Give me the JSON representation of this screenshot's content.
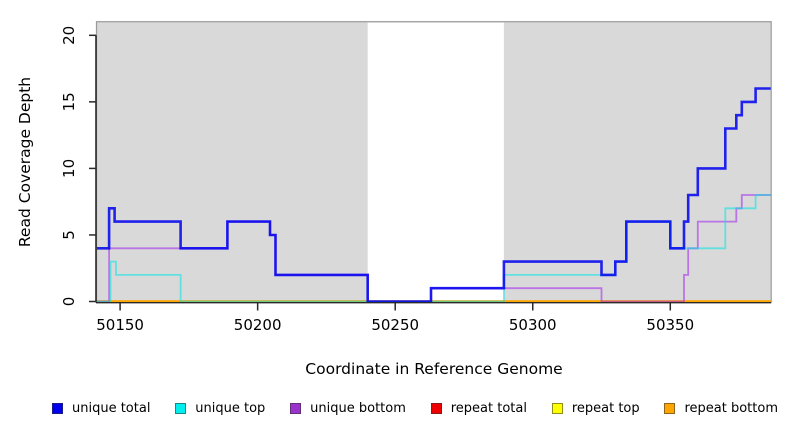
{
  "chart_data": {
    "type": "line",
    "subtype": "step",
    "title": "",
    "xlabel": "Coordinate in Reference Genome",
    "ylabel": "Read Coverage Depth",
    "xlim": [
      50141.6,
      50386.5
    ],
    "ylim": [
      0,
      21
    ],
    "x_ticks": [
      50150,
      50200,
      50250,
      50300,
      50350
    ],
    "y_ticks": [
      0,
      5,
      10,
      15,
      20
    ],
    "grid": false,
    "plot_bg_color": "#d9d9d9",
    "gap_band": {
      "x0": 50240,
      "x1": 50289.5,
      "color": "#ffffff"
    },
    "legend_position": "bottom",
    "series": [
      {
        "name": "repeat total",
        "color": "#ee0000",
        "alpha": 1,
        "width": 2.2,
        "points": [
          [
            50141.6,
            0
          ],
          [
            50386.5,
            0
          ]
        ]
      },
      {
        "name": "repeat top",
        "color": "#ffff00",
        "alpha": 1,
        "width": 2.2,
        "points": [
          [
            50141.6,
            0
          ],
          [
            50386.5,
            0
          ]
        ]
      },
      {
        "name": "repeat bottom",
        "color": "#ffa500",
        "alpha": 1,
        "width": 2.2,
        "points": [
          [
            50141.6,
            0
          ],
          [
            50386.5,
            0
          ]
        ]
      },
      {
        "name": "unique bottom",
        "color": "#a020f0",
        "alpha": 0.55,
        "width": 1.8,
        "points": [
          [
            50141.6,
            0
          ],
          [
            50146,
            4
          ],
          [
            50189,
            6
          ],
          [
            50204.5,
            5
          ],
          [
            50206.5,
            2
          ],
          [
            50240,
            0
          ],
          [
            50263,
            1
          ],
          [
            50325,
            0
          ],
          [
            50355,
            2
          ],
          [
            50356.5,
            4
          ],
          [
            50360,
            6
          ],
          [
            50374,
            7
          ],
          [
            50376,
            8
          ],
          [
            50386.5,
            8
          ]
        ]
      },
      {
        "name": "unique top",
        "color": "#00e5e5",
        "alpha": 0.55,
        "width": 1.8,
        "points": [
          [
            50141.6,
            0
          ],
          [
            50146.5,
            3
          ],
          [
            50148.5,
            2
          ],
          [
            50172,
            0
          ],
          [
            50289.5,
            2
          ],
          [
            50330,
            3
          ],
          [
            50334,
            6
          ],
          [
            50350,
            4
          ],
          [
            50370,
            7
          ],
          [
            50381,
            8
          ],
          [
            50386.5,
            8
          ]
        ]
      },
      {
        "name": "unique total",
        "color": "#0000ee",
        "alpha": 0.85,
        "width": 2.6,
        "points": [
          [
            50141.6,
            4
          ],
          [
            50146,
            7
          ],
          [
            50148,
            6
          ],
          [
            50172,
            4
          ],
          [
            50189,
            6
          ],
          [
            50204.5,
            5
          ],
          [
            50206.5,
            2
          ],
          [
            50240,
            0
          ],
          [
            50263,
            1
          ],
          [
            50289.5,
            3
          ],
          [
            50325,
            2
          ],
          [
            50330,
            3
          ],
          [
            50334,
            6
          ],
          [
            50350,
            4
          ],
          [
            50355,
            6
          ],
          [
            50356.5,
            8
          ],
          [
            50360,
            10
          ],
          [
            50370,
            13
          ],
          [
            50374,
            14
          ],
          [
            50376,
            15
          ],
          [
            50381,
            16
          ],
          [
            50386.5,
            16
          ]
        ]
      }
    ],
    "legend": [
      {
        "label": "unique total",
        "color": "#0000ee"
      },
      {
        "label": "unique top",
        "color": "#00eeee"
      },
      {
        "label": "unique bottom",
        "color": "#9a32cd"
      },
      {
        "label": "repeat total",
        "color": "#ee0000"
      },
      {
        "label": "repeat top",
        "color": "#ffff00"
      },
      {
        "label": "repeat bottom",
        "color": "#ffa500"
      }
    ]
  }
}
